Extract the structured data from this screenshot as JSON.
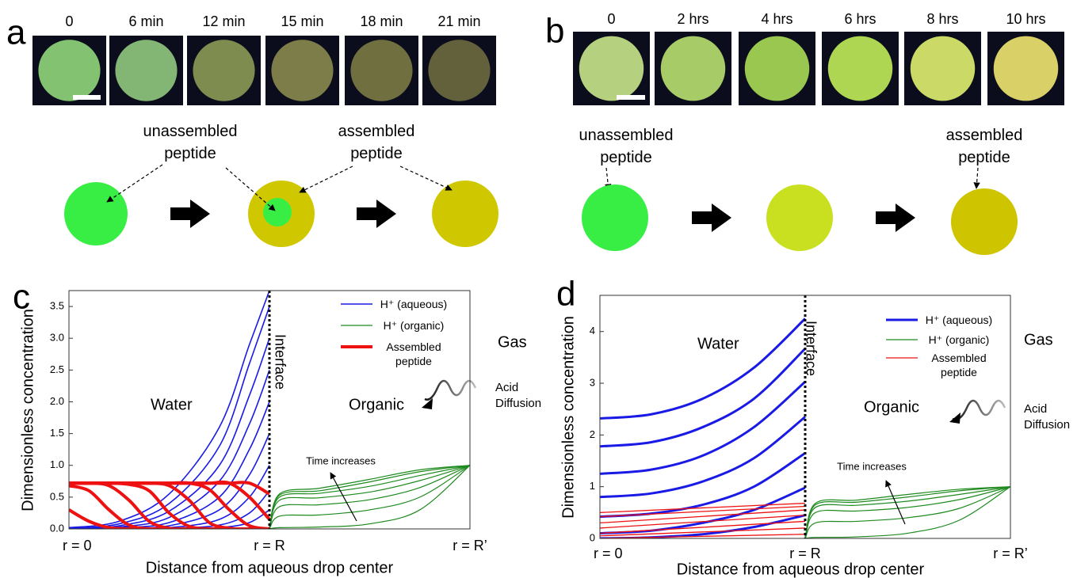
{
  "panel_a": {
    "label": "a",
    "times": [
      "0",
      "6 min",
      "12 min",
      "15 min",
      "18 min",
      "21 min"
    ],
    "unassembled": "unassembled peptide",
    "assembled": "assembled peptide"
  },
  "panel_b": {
    "label": "b",
    "times": [
      "0",
      "2 hrs",
      "4 hrs",
      "6 hrs",
      "8 hrs",
      "10 hrs"
    ],
    "unassembled": "unassembled peptide",
    "assembled": "assembled peptide"
  },
  "chart_data": [
    {
      "type": "line",
      "label": "c",
      "y_label": "Dimensionless concentration",
      "x_label": "Distance from aqueous drop center",
      "xlim": [
        0,
        2
      ],
      "ylim": [
        0,
        3.75
      ],
      "xticks": [
        {
          "value": 0,
          "label": "r = 0"
        },
        {
          "value": 1,
          "label": "r = R"
        },
        {
          "value": 2,
          "label": "r = R’"
        }
      ],
      "yticks": [
        {
          "value": 0,
          "label": "0.0"
        },
        0.5,
        {
          "value": 1,
          "label": "1.0"
        },
        1.5,
        {
          "value": 2,
          "label": "2.0"
        },
        2.5,
        {
          "value": 3,
          "label": "3.0"
        },
        3.5
      ],
      "legend": "upper right",
      "annotations": {
        "water": "Water",
        "organic": "Organic",
        "gas": "Gas",
        "interface": "Interface",
        "time": "Time increases",
        "acid": "Acid Diffusion"
      },
      "series": [
        {
          "name": "H⁺ (aqueous)",
          "color": "#1a1ae6",
          "x": [
            0,
            0.25,
            0.5,
            0.75,
            0.9,
            1
          ],
          "curves": [
            [
              0,
              0,
              0,
              0.02,
              0.1,
              0.3
            ],
            [
              0,
              0,
              0.01,
              0.06,
              0.25,
              0.6
            ],
            [
              0,
              0,
              0.02,
              0.15,
              0.5,
              1.0
            ],
            [
              0,
              0.01,
              0.05,
              0.3,
              0.85,
              1.5
            ],
            [
              0,
              0.02,
              0.1,
              0.5,
              1.25,
              2.0
            ],
            [
              0,
              0.03,
              0.18,
              0.75,
              1.65,
              2.5
            ],
            [
              0,
              0.05,
              0.28,
              1.0,
              2.1,
              3.0
            ],
            [
              0.01,
              0.08,
              0.4,
              1.3,
              2.6,
              3.5
            ],
            [
              0.02,
              0.12,
              0.55,
              1.6,
              2.9,
              3.75
            ]
          ]
        },
        {
          "name": "H⁺ (organic)",
          "color": "#1e8a1e",
          "x": [
            1,
            1.05,
            1.25,
            1.5,
            1.75,
            2
          ],
          "curves": [
            [
              0,
              0.02,
              0.03,
              0.08,
              0.3,
              1.0
            ],
            [
              0,
              0.2,
              0.22,
              0.3,
              0.5,
              1.0
            ],
            [
              0,
              0.35,
              0.38,
              0.46,
              0.65,
              1.0
            ],
            [
              0,
              0.45,
              0.49,
              0.58,
              0.76,
              1.0
            ],
            [
              0,
              0.5,
              0.56,
              0.67,
              0.84,
              1.0
            ],
            [
              0,
              0.53,
              0.6,
              0.74,
              0.9,
              1.0
            ],
            [
              0,
              0.55,
              0.64,
              0.78,
              0.93,
              1.0
            ]
          ]
        },
        {
          "name": "Assembled peptide",
          "color": "#ee1111",
          "x": [
            0,
            0.1,
            0.2,
            0.3,
            0.4,
            0.5,
            0.6,
            0.7,
            0.8,
            0.9,
            1.0
          ],
          "curves": [
            [
              0.3,
              0.12,
              0.02,
              0,
              0,
              0,
              0,
              0,
              0,
              0,
              0
            ],
            [
              0.68,
              0.6,
              0.3,
              0.06,
              0,
              0,
              0,
              0,
              0,
              0,
              0
            ],
            [
              0.72,
              0.72,
              0.68,
              0.45,
              0.12,
              0.01,
              0,
              0,
              0,
              0,
              0
            ],
            [
              0.72,
              0.72,
              0.72,
              0.7,
              0.6,
              0.25,
              0.04,
              0,
              0,
              0,
              0
            ],
            [
              0.72,
              0.72,
              0.72,
              0.72,
              0.72,
              0.68,
              0.45,
              0.1,
              0.01,
              0,
              0
            ],
            [
              0.72,
              0.72,
              0.72,
              0.72,
              0.72,
              0.72,
              0.72,
              0.62,
              0.3,
              0.05,
              0
            ],
            [
              0.72,
              0.72,
              0.72,
              0.72,
              0.72,
              0.72,
              0.72,
              0.72,
              0.72,
              0.5,
              0.15
            ],
            [
              0.72,
              0.72,
              0.72,
              0.72,
              0.72,
              0.72,
              0.72,
              0.72,
              0.72,
              0.72,
              0.55
            ]
          ]
        }
      ]
    },
    {
      "type": "line",
      "label": "d",
      "y_label": "Dimensionless concentration",
      "x_label": "Distance from aqueous drop center",
      "xlim": [
        0,
        2
      ],
      "ylim": [
        0,
        4.7
      ],
      "xticks": [
        {
          "value": 0,
          "label": "r = 0"
        },
        {
          "value": 1,
          "label": "r = R"
        },
        {
          "value": 2,
          "label": "r = R’"
        }
      ],
      "yticks": [
        0,
        1,
        2,
        3,
        4
      ],
      "legend": "upper right",
      "annotations": {
        "water": "Water",
        "organic": "Organic",
        "gas": "Gas",
        "interface": "Interface",
        "time": "Time increases",
        "acid": "Acid Diffusion"
      },
      "series": [
        {
          "name": "H⁺ (aqueous)",
          "color": "#1a1ae6",
          "x": [
            0,
            0.25,
            0.5,
            0.75,
            1
          ],
          "curves": [
            [
              2.32,
              2.4,
              2.7,
              3.3,
              4.25
            ],
            [
              1.78,
              1.86,
              2.15,
              2.7,
              3.67
            ],
            [
              1.25,
              1.33,
              1.6,
              2.15,
              3.03
            ],
            [
              0.8,
              0.87,
              1.1,
              1.55,
              2.35
            ],
            [
              0.42,
              0.48,
              0.65,
              1.0,
              1.65
            ],
            [
              0.1,
              0.15,
              0.3,
              0.55,
              0.98
            ],
            [
              0,
              0.02,
              0.08,
              0.22,
              0.45
            ]
          ]
        },
        {
          "name": "H⁺ (organic)",
          "color": "#1e8a1e",
          "x": [
            1,
            1.05,
            1.25,
            1.5,
            1.75,
            2
          ],
          "curves": [
            [
              0,
              0.02,
              0.03,
              0.1,
              0.35,
              1.0
            ],
            [
              0,
              0.3,
              0.33,
              0.4,
              0.58,
              1.0
            ],
            [
              0,
              0.5,
              0.53,
              0.6,
              0.75,
              1.0
            ],
            [
              0,
              0.6,
              0.64,
              0.72,
              0.85,
              1.0
            ],
            [
              0,
              0.65,
              0.7,
              0.8,
              0.92,
              1.0
            ],
            [
              0,
              0.68,
              0.74,
              0.85,
              0.95,
              1.0
            ]
          ]
        },
        {
          "name": "Assembled peptide",
          "color": "#ee1111",
          "x": [
            0,
            1
          ],
          "curves": [
            [
              0.5,
              0.68
            ],
            [
              0.42,
              0.62
            ],
            [
              0.3,
              0.55
            ],
            [
              0.2,
              0.45
            ],
            [
              0.1,
              0.33
            ],
            [
              0.05,
              0.2
            ],
            [
              0,
              0.08
            ]
          ]
        }
      ]
    }
  ]
}
